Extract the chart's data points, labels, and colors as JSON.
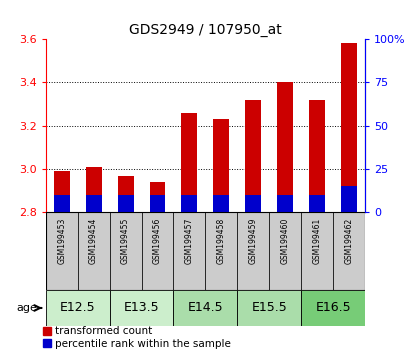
{
  "title": "GDS2949 / 107950_at",
  "samples": [
    "GSM199453",
    "GSM199454",
    "GSM199455",
    "GSM199456",
    "GSM199457",
    "GSM199458",
    "GSM199459",
    "GSM199460",
    "GSM199461",
    "GSM199462"
  ],
  "age_groups": [
    {
      "label": "E12.5",
      "indices": [
        0,
        1
      ],
      "color": "#cceecc"
    },
    {
      "label": "E13.5",
      "indices": [
        2,
        3
      ],
      "color": "#cceecc"
    },
    {
      "label": "E14.5",
      "indices": [
        4,
        5
      ],
      "color": "#aaddaa"
    },
    {
      "label": "E15.5",
      "indices": [
        6,
        7
      ],
      "color": "#aaddaa"
    },
    {
      "label": "E16.5",
      "indices": [
        8,
        9
      ],
      "color": "#77cc77"
    }
  ],
  "transformed_count": [
    2.99,
    3.01,
    2.97,
    2.94,
    3.26,
    3.23,
    3.32,
    3.4,
    3.32,
    3.58
  ],
  "percentile_rank_pct": [
    10,
    10,
    10,
    10,
    10,
    10,
    10,
    10,
    10,
    15
  ],
  "bar_bottom": 2.8,
  "ylim_left": [
    2.8,
    3.6
  ],
  "ylim_right": [
    0,
    100
  ],
  "yticks_left": [
    2.8,
    3.0,
    3.2,
    3.4,
    3.6
  ],
  "yticks_right": [
    0,
    25,
    50,
    75,
    100
  ],
  "bar_color_red": "#cc0000",
  "bar_color_blue": "#0000cc",
  "bar_width": 0.5,
  "sample_box_color": "#cccccc",
  "grid_lines": [
    3.0,
    3.2,
    3.4
  ],
  "legend_red_label": "transformed count",
  "legend_blue_label": "percentile rank within the sample",
  "age_label": "age",
  "title_fontsize": 10,
  "tick_fontsize": 8,
  "sample_fontsize": 5.5,
  "age_fontsize": 9,
  "legend_fontsize": 7.5
}
